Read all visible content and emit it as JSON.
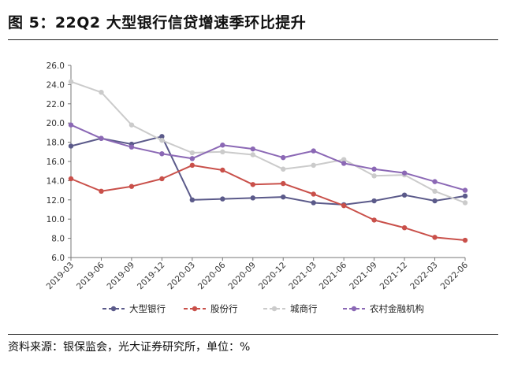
{
  "header": {
    "title": "图 5：22Q2 大型银行信贷增速季环比提升"
  },
  "footer": {
    "source": "资料来源：银保监会，光大证券研究所，单位：%"
  },
  "chart_data": {
    "type": "line",
    "title": "图 5：22Q2 大型银行信贷增速季环比提升",
    "x": [
      "2019-03",
      "2019-06",
      "2019-09",
      "2019-12",
      "2020-03",
      "2020-06",
      "2020-09",
      "2020-12",
      "2021-03",
      "2021-06",
      "2021-09",
      "2021-12",
      "2022-03",
      "2022-06"
    ],
    "ylim": [
      6.0,
      26.0
    ],
    "yticks": [
      "6.0",
      "8.0",
      "10.0",
      "12.0",
      "14.0",
      "16.0",
      "18.0",
      "20.0",
      "22.0",
      "24.0",
      "26.0"
    ],
    "grid": false,
    "legend_position": "bottom",
    "series": [
      {
        "name": "大型银行",
        "color": "#5b5a8a",
        "values": [
          17.6,
          18.4,
          17.8,
          18.6,
          12.0,
          12.1,
          12.2,
          12.3,
          11.7,
          11.5,
          11.9,
          12.5,
          11.9,
          12.4
        ]
      },
      {
        "name": "股份行",
        "color": "#c9504a",
        "values": [
          14.2,
          12.9,
          13.4,
          14.2,
          15.6,
          15.1,
          13.6,
          13.7,
          12.6,
          11.4,
          9.9,
          9.1,
          8.1,
          7.8
        ]
      },
      {
        "name": "城商行",
        "color": "#cbcbcb",
        "values": [
          24.3,
          23.2,
          19.8,
          18.2,
          16.9,
          17.0,
          16.7,
          15.2,
          15.6,
          16.2,
          14.5,
          14.6,
          12.9,
          11.7
        ]
      },
      {
        "name": "农村金融机构",
        "color": "#8b68b5",
        "values": [
          19.8,
          18.4,
          17.5,
          16.8,
          16.3,
          17.7,
          17.3,
          16.4,
          17.1,
          15.8,
          15.2,
          14.8,
          13.9,
          13.0
        ]
      }
    ]
  }
}
